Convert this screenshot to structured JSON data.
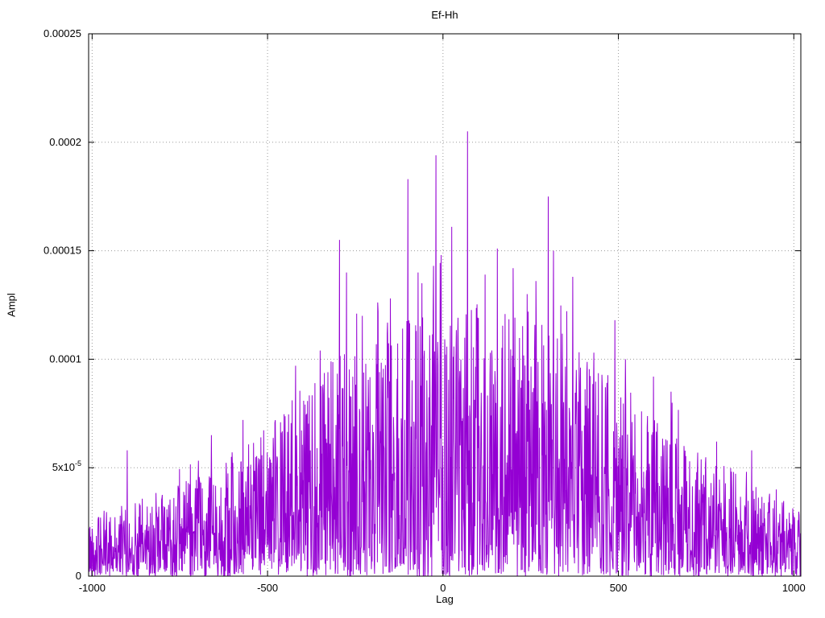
{
  "chart_data": {
    "type": "line",
    "title": "Ef-Hh",
    "xlabel": "Lag",
    "ylabel": "Ampl",
    "xlim": [
      -1010,
      1020
    ],
    "ylim": [
      0,
      0.00025
    ],
    "grid": true,
    "legend": "none",
    "line_color": "#9400d3",
    "grid_color": "#9a9a9a",
    "x_ticks": [
      {
        "value": -1000,
        "label": "-1000"
      },
      {
        "value": -500,
        "label": "-500"
      },
      {
        "value": 0,
        "label": "0"
      },
      {
        "value": 500,
        "label": "500"
      },
      {
        "value": 1000,
        "label": "1000"
      }
    ],
    "y_ticks": [
      {
        "value": 0,
        "label": "0"
      },
      {
        "value": 5e-05,
        "label": "5x10",
        "sup": "-5"
      },
      {
        "value": 0.0001,
        "label": "0.0001"
      },
      {
        "value": 0.00015,
        "label": "0.00015"
      },
      {
        "value": 0.0002,
        "label": "0.0002"
      },
      {
        "value": 0.00025,
        "label": "0.00025"
      }
    ],
    "description": "Noisy cross-correlation amplitude vs lag; dense random spikes under a broad envelope peaking near lag 0-100, max spike ~0.000205 at lag ~70",
    "noise_seed": 42,
    "noise_exponent": 1.5,
    "envelope": {
      "x": [
        -1010,
        -900,
        -800,
        -700,
        -600,
        -500,
        -400,
        -300,
        -200,
        -100,
        0,
        100,
        200,
        300,
        400,
        500,
        600,
        700,
        800,
        900,
        1020
      ],
      "y": [
        2.8e-05,
        3.4e-05,
        4e-05,
        4.6e-05,
        5.6e-05,
        7e-05,
        9e-05,
        0.000102,
        0.000108,
        0.00012,
        0.000126,
        0.000126,
        0.00012,
        0.000115,
        0.0001,
        9e-05,
        7.8e-05,
        6.2e-05,
        5.2e-05,
        4.2e-05,
        3e-05
      ]
    },
    "peaks": [
      {
        "x": -900,
        "y": 5.8e-05
      },
      {
        "x": -660,
        "y": 6.5e-05
      },
      {
        "x": -570,
        "y": 7.2e-05
      },
      {
        "x": -420,
        "y": 9.7e-05
      },
      {
        "x": -350,
        "y": 0.000104
      },
      {
        "x": -295,
        "y": 0.000155
      },
      {
        "x": -275,
        "y": 0.00014
      },
      {
        "x": -230,
        "y": 0.00012
      },
      {
        "x": -185,
        "y": 0.000122
      },
      {
        "x": -150,
        "y": 0.000128
      },
      {
        "x": -100,
        "y": 0.000183
      },
      {
        "x": -60,
        "y": 0.000135
      },
      {
        "x": -20,
        "y": 0.000194
      },
      {
        "x": -5,
        "y": 0.000148
      },
      {
        "x": 25,
        "y": 0.000161
      },
      {
        "x": 70,
        "y": 0.000205
      },
      {
        "x": 120,
        "y": 0.000139
      },
      {
        "x": 155,
        "y": 0.000151
      },
      {
        "x": 200,
        "y": 0.000142
      },
      {
        "x": 240,
        "y": 0.00013
      },
      {
        "x": 265,
        "y": 0.000136
      },
      {
        "x": 300,
        "y": 0.000175
      },
      {
        "x": 315,
        "y": 0.00015
      },
      {
        "x": 370,
        "y": 0.000138
      },
      {
        "x": 430,
        "y": 0.000103
      },
      {
        "x": 490,
        "y": 0.000118
      },
      {
        "x": 520,
        "y": 0.0001
      },
      {
        "x": 600,
        "y": 9.2e-05
      },
      {
        "x": 650,
        "y": 8.5e-05
      },
      {
        "x": 780,
        "y": 6.2e-05
      },
      {
        "x": 880,
        "y": 5.8e-05
      },
      {
        "x": 950,
        "y": 4e-05
      }
    ]
  }
}
